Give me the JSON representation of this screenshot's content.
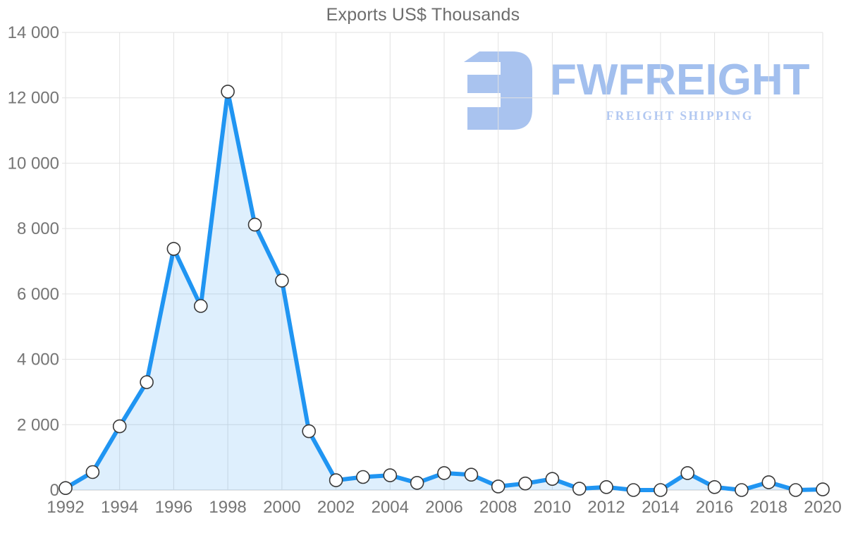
{
  "watermark": {
    "brand": "FWFREIGHT",
    "tagline": "FREIGHT SHIPPING",
    "icon_color": "#a9c3ef",
    "brand_color": "#a2bfee",
    "tagline_color": "#b2c8f1"
  },
  "chart_data": {
    "type": "area",
    "title": "Exports US$ Thousands",
    "xlabel": "",
    "ylabel": "",
    "x": [
      1992,
      1993,
      1994,
      1995,
      1996,
      1997,
      1998,
      1999,
      2000,
      2001,
      2002,
      2003,
      2004,
      2005,
      2006,
      2007,
      2008,
      2009,
      2010,
      2011,
      2012,
      2013,
      2014,
      2015,
      2016,
      2017,
      2018,
      2019,
      2020
    ],
    "series": [
      {
        "name": "Exports US$ Thousands",
        "values": [
          60,
          550,
          1950,
          3300,
          7380,
          5630,
          12190,
          8120,
          6410,
          1800,
          300,
          400,
          450,
          220,
          520,
          470,
          110,
          200,
          340,
          40,
          90,
          0,
          0,
          520,
          90,
          0,
          240,
          0,
          20
        ]
      }
    ],
    "ylim": [
      0,
      14000
    ],
    "y_ticks": [
      0,
      2000,
      4000,
      6000,
      8000,
      10000,
      12000,
      14000
    ],
    "y_tick_labels": [
      "0",
      "2 000",
      "4 000",
      "6 000",
      "8 000",
      "10 000",
      "12 000",
      "14 000"
    ],
    "x_ticks": [
      1992,
      1994,
      1996,
      1998,
      2000,
      2002,
      2004,
      2006,
      2008,
      2010,
      2012,
      2014,
      2016,
      2018,
      2020
    ],
    "grid": true,
    "legend": "none",
    "marker": "circle",
    "colors": {
      "line": "#2095f2",
      "fill": "rgba(33,150,243,0.15)",
      "marker_fill": "#ffffff",
      "marker_stroke": "#383838",
      "grid": "#e2e2e2",
      "axis_line": "#cccccc",
      "tick_text": "#757575",
      "title_text": "#6d6d6d"
    }
  }
}
